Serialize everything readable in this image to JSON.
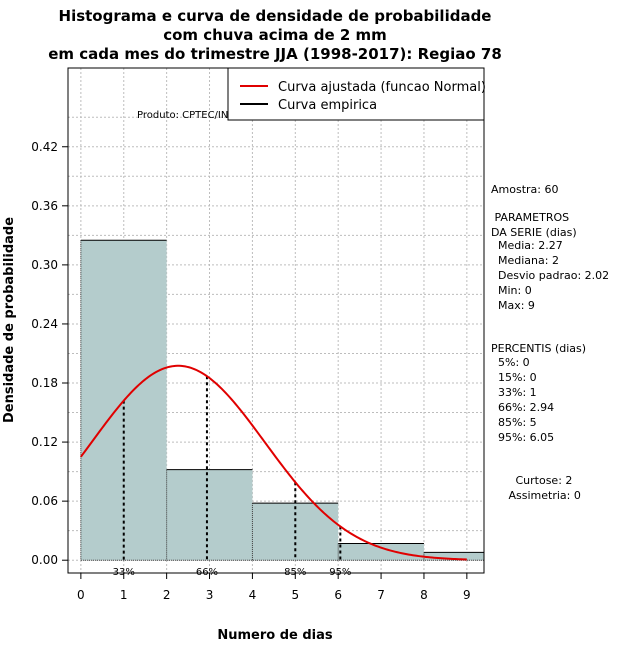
{
  "chart_data": {
    "type": "bar",
    "title_lines": [
      "Histograma e curva de densidade de probabilidade",
      "com chuva acima de 2 mm",
      "em cada mes do trimestre JJA (1998-2017): Regiao 78"
    ],
    "xlabel": "Numero de dias",
    "ylabel": "Densidade de probabilidade",
    "xlim": [
      -0.3,
      9.4
    ],
    "ylim": [
      -0.013,
      0.5
    ],
    "x_ticks": [
      0,
      1,
      2,
      3,
      4,
      5,
      6,
      7,
      8,
      9
    ],
    "y_ticks": [
      0.0,
      0.06,
      0.12,
      0.18,
      0.24,
      0.3,
      0.36,
      0.42
    ],
    "y_tick_labels": [
      "0.00",
      "0.06",
      "0.12",
      "0.18",
      "0.24",
      "0.30",
      "0.36",
      "0.42"
    ],
    "bins": [
      {
        "from": 0,
        "to": 2,
        "density": 0.325
      },
      {
        "from": 2,
        "to": 4,
        "density": 0.092
      },
      {
        "from": 4,
        "to": 6,
        "density": 0.058
      },
      {
        "from": 6,
        "to": 8,
        "density": 0.017
      },
      {
        "from": 8,
        "to": 10,
        "density": 0.008
      }
    ],
    "normal_curve": {
      "label": "Curva ajustada (funcao Normal)",
      "mean": 2.27,
      "sd": 2.02,
      "x_from": 0,
      "x_to": 9,
      "color": "#e00000"
    },
    "empirical_curve": {
      "label": "Curva empirica",
      "color": "#000000"
    },
    "percentile_markers": [
      {
        "x": 1,
        "label": "33%"
      },
      {
        "x": 2.94,
        "label": "66%"
      },
      {
        "x": 5,
        "label": "85%"
      },
      {
        "x": 6.05,
        "label": "95%"
      }
    ],
    "bar_fill": "#b4cccc",
    "grid": true,
    "legend_position": "top-right"
  },
  "product_label": "Produto: CPTEC/INPE",
  "stats": {
    "amostra": "Amostra: 60",
    "parametros_title": " PARAMETROS\nDA SERIE (dias)",
    "parametros": "  Media: 2.27\n  Mediana: 2\n  Desvio padrao: 2.02\n  Min: 0\n  Max: 9",
    "percentis_title": "PERCENTIS (dias)",
    "percentis": "  5%: 0\n  15%: 0\n  33%: 1\n  66%: 2.94\n  85%: 5\n  95%: 6.05",
    "curtose": "       Curtose: 2\n     Assimetria: 0"
  }
}
